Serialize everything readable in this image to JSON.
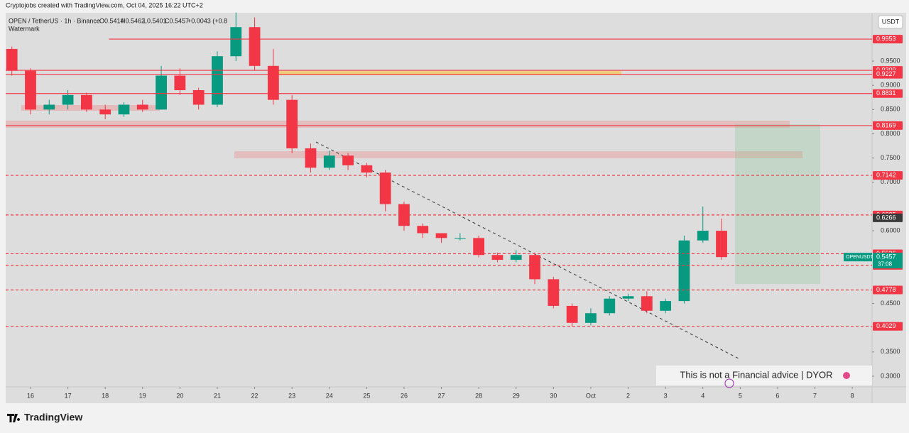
{
  "header": {
    "credit": "Cryptojobs created with TradingView.com, Oct 04, 2025 16:22 UTC+2",
    "symbol": "OPEN / TetherUS · 1h · Binance",
    "ohlc": [
      "O0.5414",
      "H0.5462",
      "L0.5401",
      "C0.5457",
      "+0.0043 (+0.8"
    ],
    "watermark": "Watermark",
    "currency": "USDT"
  },
  "chart_data": {
    "type": "candlestick",
    "x": [
      15.5,
      16,
      16.5,
      17,
      17.5,
      18,
      18.5,
      19,
      19.5,
      20,
      20.5,
      21,
      21.5,
      22,
      22.5,
      23,
      23.5,
      24,
      24.5,
      25,
      25.5,
      26,
      26.5,
      27,
      27.5,
      28,
      28.5,
      29,
      29.5,
      30,
      30.5,
      31,
      31.5,
      32,
      32.5,
      33,
      33.5,
      34,
      34.5
    ],
    "open": [
      0.975,
      0.93,
      0.85,
      0.86,
      0.88,
      0.85,
      0.84,
      0.86,
      0.85,
      0.92,
      0.89,
      0.86,
      0.96,
      1.02,
      0.94,
      0.87,
      0.77,
      0.73,
      0.755,
      0.735,
      0.72,
      0.655,
      0.61,
      0.595,
      0.585,
      0.585,
      0.55,
      0.54,
      0.55,
      0.5,
      0.445,
      0.41,
      0.43,
      0.46,
      0.465,
      0.435,
      0.455,
      0.58,
      0.6
    ],
    "high": [
      0.98,
      0.935,
      0.87,
      0.89,
      0.885,
      0.86,
      0.865,
      0.87,
      0.94,
      0.935,
      0.895,
      0.97,
      1.05,
      1.04,
      0.975,
      0.88,
      0.78,
      0.765,
      0.76,
      0.74,
      0.725,
      0.66,
      0.615,
      0.595,
      0.595,
      0.59,
      0.555,
      0.56,
      0.555,
      0.505,
      0.45,
      0.44,
      0.465,
      0.47,
      0.475,
      0.46,
      0.59,
      0.65,
      0.625
    ],
    "low": [
      0.92,
      0.84,
      0.84,
      0.85,
      0.845,
      0.83,
      0.835,
      0.845,
      0.85,
      0.88,
      0.85,
      0.855,
      0.95,
      0.93,
      0.86,
      0.76,
      0.72,
      0.725,
      0.725,
      0.71,
      0.64,
      0.6,
      0.585,
      0.575,
      0.58,
      0.545,
      0.535,
      0.535,
      0.49,
      0.44,
      0.403,
      0.405,
      0.425,
      0.455,
      0.43,
      0.43,
      0.45,
      0.575,
      0.54
    ],
    "close": [
      0.93,
      0.85,
      0.86,
      0.88,
      0.85,
      0.84,
      0.86,
      0.85,
      0.92,
      0.89,
      0.86,
      0.96,
      1.02,
      0.94,
      0.87,
      0.77,
      0.73,
      0.755,
      0.735,
      0.72,
      0.655,
      0.61,
      0.595,
      0.585,
      0.585,
      0.55,
      0.54,
      0.55,
      0.5,
      0.445,
      0.41,
      0.43,
      0.46,
      0.465,
      0.435,
      0.455,
      0.58,
      0.6,
      0.5457
    ],
    "up_color": "#089981",
    "down_color": "#f23645",
    "xlim": [
      15.335,
      38.53
    ],
    "ylim": [
      0.278,
      1.0496
    ],
    "xticks": [
      16,
      17,
      18,
      19,
      20,
      21,
      22,
      23,
      24,
      25,
      26,
      27,
      28,
      29,
      30,
      {
        "value": 31,
        "label": "Oct"
      },
      {
        "value": 32,
        "label": "2"
      },
      {
        "value": 33,
        "label": "3"
      },
      {
        "value": 34,
        "label": "4"
      },
      {
        "value": 35,
        "label": "5"
      },
      {
        "value": 36,
        "label": "6"
      },
      {
        "value": 37,
        "label": "7"
      },
      {
        "value": 38,
        "label": "8"
      }
    ],
    "yticks": [
      {
        "value": 0.95,
        "label": "0.9500"
      },
      {
        "value": 0.9,
        "label": "0.9000"
      },
      {
        "value": 0.85,
        "label": "0.8500"
      },
      {
        "value": 0.8,
        "label": "0.8000"
      },
      {
        "value": 0.75,
        "label": "0.7500"
      },
      {
        "value": 0.7,
        "label": "0.7000"
      },
      {
        "value": 0.6,
        "label": "0.6000"
      },
      {
        "value": 0.45,
        "label": "0.4500"
      },
      {
        "value": 0.35,
        "label": "0.3500"
      },
      {
        "value": 0.3,
        "label": "0.3000"
      }
    ],
    "levels": [
      {
        "value": 0.9953,
        "style": "solid",
        "color": "#f23645",
        "start": 18.1
      },
      {
        "value": 0.9309,
        "style": "solid",
        "color": "#f23645"
      },
      {
        "value": 0.9227,
        "style": "solid",
        "color": "#f23645"
      },
      {
        "value": 0.8831,
        "style": "solid",
        "color": "#f23645"
      },
      {
        "value": 0.8169,
        "style": "solid",
        "color": "#f23645"
      },
      {
        "value": 0.7142,
        "style": "dashed",
        "color": "#f23645"
      },
      {
        "value": 0.6325,
        "style": "dashed",
        "color": "#f23645"
      },
      {
        "value": 0.6266,
        "style": "none",
        "color": "#3a3a3a"
      },
      {
        "value": 0.5526,
        "style": "dashed",
        "color": "#f23645"
      },
      {
        "value": 0.5285,
        "style": "dashed",
        "color": "#f23645"
      },
      {
        "value": 0.4778,
        "style": "dashed",
        "color": "#f23645"
      },
      {
        "value": 0.4029,
        "style": "dashed",
        "color": "#f23645"
      }
    ],
    "last": {
      "symbol": "OPENUSDT",
      "value": 0.5457,
      "countdown": "37:08",
      "color": "#089981"
    },
    "annotation": "This is not a Financial advice | DYOR"
  },
  "footer": {
    "brand": "TradingView"
  }
}
